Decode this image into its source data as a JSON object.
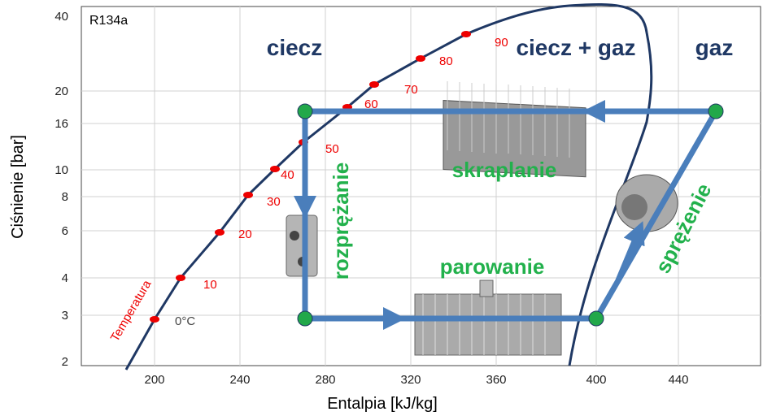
{
  "title": "R134a",
  "axes": {
    "x_title": "Entalpia [kJ/kg]",
    "y_title": "Ciśnienie [bar]",
    "x_ticks": [
      "200",
      "240",
      "280",
      "320",
      "360",
      "400",
      "440"
    ],
    "y_ticks": [
      "2",
      "3",
      "4",
      "6",
      "8",
      "10",
      "16",
      "20",
      "40"
    ]
  },
  "regions": [
    "ciecz",
    "ciecz + gaz",
    "gaz"
  ],
  "processes": [
    "skraplanie",
    "parowanie",
    "rozprężanie",
    "sprężenie"
  ],
  "temperature": {
    "label": "Temperatura",
    "values": [
      "0°C",
      "10",
      "20",
      "30",
      "40",
      "50",
      "60",
      "70",
      "80",
      "90"
    ]
  }
}
